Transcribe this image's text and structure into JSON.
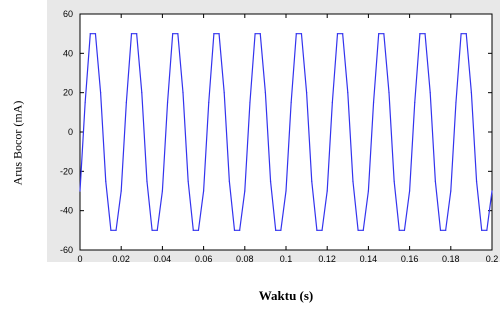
{
  "chart_data": {
    "type": "line",
    "title": "",
    "xlabel": "Waktu (s)",
    "ylabel": "Arus Bocor (mA)",
    "xlim": [
      0,
      0.2
    ],
    "ylim": [
      -60,
      60
    ],
    "xticks": [
      0,
      0.02,
      0.04,
      0.06,
      0.08,
      0.1,
      0.12,
      0.14,
      0.16,
      0.18,
      0.2
    ],
    "xtick_labels": [
      "0",
      "0.02",
      "0.04",
      "0.06",
      "0.08",
      "0.1",
      "0.12",
      "0.14",
      "0.16",
      "0.18",
      "0.2"
    ],
    "yticks": [
      -60,
      -40,
      -20,
      0,
      20,
      40,
      60
    ],
    "ytick_labels": [
      "-60",
      "-40",
      "-20",
      "0",
      "20",
      "40",
      "60"
    ],
    "grid": false,
    "line_color": "#3333ee",
    "series": [
      {
        "name": "",
        "x": [
          0,
          0.0025,
          0.005,
          0.0075,
          0.01,
          0.0125,
          0.015,
          0.0175,
          0.02,
          0.0225,
          0.025,
          0.0275,
          0.03,
          0.0325,
          0.035,
          0.0375,
          0.04,
          0.0425,
          0.045,
          0.0475,
          0.05,
          0.0525,
          0.055,
          0.0575,
          0.06,
          0.0625,
          0.065,
          0.0675,
          0.07,
          0.0725,
          0.075,
          0.0775,
          0.08,
          0.0825,
          0.085,
          0.0875,
          0.09,
          0.0925,
          0.095,
          0.0975,
          0.1,
          0.1025,
          0.105,
          0.1075,
          0.11,
          0.1125,
          0.115,
          0.1175,
          0.12,
          0.1225,
          0.125,
          0.1275,
          0.13,
          0.1325,
          0.135,
          0.1375,
          0.14,
          0.1425,
          0.145,
          0.1475,
          0.15,
          0.1525,
          0.155,
          0.1575,
          0.16,
          0.1625,
          0.165,
          0.1675,
          0.17,
          0.1725,
          0.175,
          0.1775,
          0.18,
          0.1825,
          0.185,
          0.1875,
          0.19,
          0.1925,
          0.195,
          0.1975,
          0.2
        ],
        "y": [
          -30,
          15,
          50,
          50,
          20,
          -25,
          -50,
          -50,
          -30,
          15,
          50,
          50,
          20,
          -25,
          -50,
          -50,
          -30,
          15,
          50,
          50,
          20,
          -25,
          -50,
          -50,
          -30,
          15,
          50,
          50,
          20,
          -25,
          -50,
          -50,
          -30,
          15,
          50,
          50,
          20,
          -25,
          -50,
          -50,
          -30,
          15,
          50,
          50,
          20,
          -25,
          -50,
          -50,
          -30,
          15,
          50,
          50,
          20,
          -25,
          -50,
          -50,
          -30,
          15,
          50,
          50,
          20,
          -25,
          -50,
          -50,
          -30,
          15,
          50,
          50,
          20,
          -25,
          -50,
          -50,
          -30,
          15,
          50,
          50,
          20,
          -25,
          -50,
          -50,
          -30
        ]
      }
    ]
  }
}
